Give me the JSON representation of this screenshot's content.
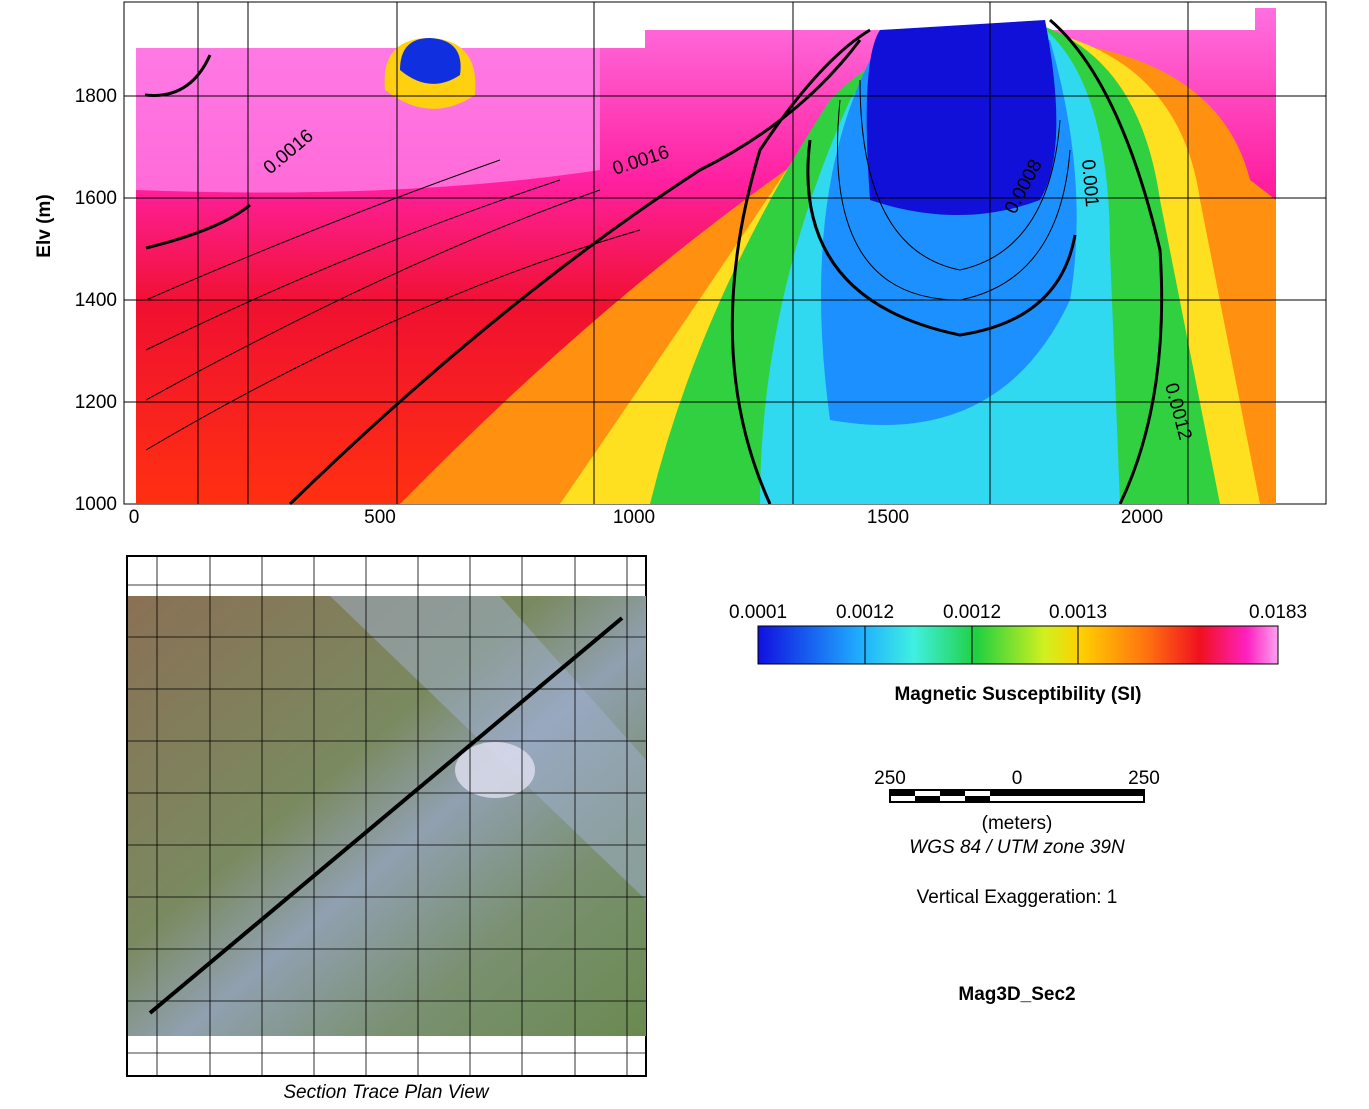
{
  "section": {
    "y_label": "Elv (m)",
    "xticks": [
      "0",
      "500",
      "1000",
      "1500",
      "2000"
    ],
    "yticks": [
      "1000",
      "1200",
      "1400",
      "1600",
      "1800"
    ],
    "contour_labels": [
      "0.0016",
      "0.0016",
      "0.0008",
      "0.001",
      "0.0012"
    ]
  },
  "colorbar": {
    "ticks": [
      "0.0001",
      "0.0012",
      "0.0012",
      "0.0013",
      "0.0183"
    ],
    "title": "Magnetic Susceptibility (SI)"
  },
  "scale_bar": {
    "labels": [
      "250",
      "0",
      "250"
    ],
    "unit": "(meters)",
    "projection": "WGS 84 / UTM zone 39N"
  },
  "vertical_exaggeration": "Vertical Exaggeration: 1",
  "section_name": "Mag3D_Sec2",
  "plan_view": {
    "caption": "Section Trace Plan View"
  }
}
